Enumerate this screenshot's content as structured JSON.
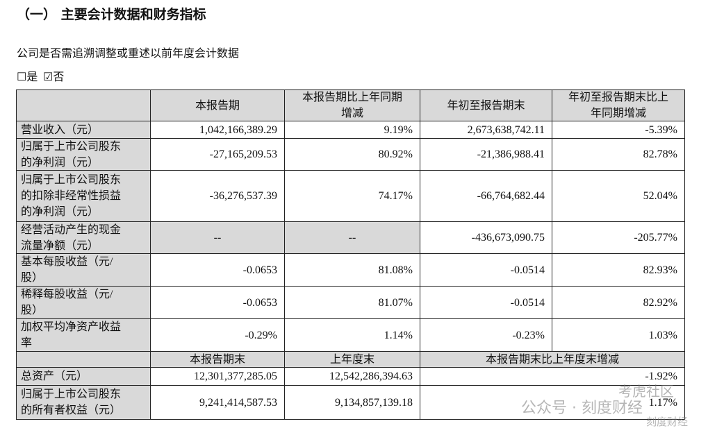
{
  "header": {
    "title": "（一） 主要会计数据和财务指标"
  },
  "question": "公司是否需追溯调整或重述以前年度会计数据",
  "options": [
    "☐是",
    "☑否"
  ],
  "table": {
    "columns": [
      [
        "本报告期"
      ],
      [
        "本报告期比上年同期",
        "增减"
      ],
      [
        "年初至报告期末"
      ],
      [
        "年初至报告期末比上",
        "年同期增减"
      ]
    ],
    "rows": [
      {
        "label": [
          "营业收入（元）"
        ],
        "cells": [
          "1,042,166,389.29",
          "9.19%",
          "2,673,638,742.11",
          "-5.39%"
        ]
      },
      {
        "label": [
          "归属于上市公司股东",
          "的净利润（元）"
        ],
        "cells": [
          "-27,165,209.53",
          "80.92%",
          "-21,386,988.41",
          "82.78%"
        ]
      },
      {
        "label": [
          "归属于上市公司股东",
          "的扣除非经常性损益",
          "的净利润（元）"
        ],
        "cells": [
          "-36,276,537.39",
          "74.17%",
          "-66,764,682.44",
          "52.04%"
        ]
      },
      {
        "label": [
          "经营活动产生的现金",
          "流量净额（元）"
        ],
        "cells": [
          "--",
          "--",
          "-436,673,090.75",
          "-205.77%"
        ]
      },
      {
        "label": [
          "基本每股收益（元/",
          "股）"
        ],
        "cells": [
          "-0.0653",
          "81.08%",
          "-0.0514",
          "82.93%"
        ]
      },
      {
        "label": [
          "稀释每股收益（元/",
          "股）"
        ],
        "cells": [
          "-0.0653",
          "81.07%",
          "-0.0514",
          "82.92%"
        ]
      },
      {
        "label": [
          "加权平均净资产收益",
          "率"
        ],
        "cells": [
          "-0.29%",
          "1.14%",
          "-0.23%",
          "1.03%"
        ]
      }
    ],
    "balance_columns": [
      "本报告期末",
      "上年度末",
      "本报告期末比上年度末增减"
    ],
    "balance_rows": [
      {
        "label": [
          "总资产（元）"
        ],
        "cells": [
          "12,301,377,285.05",
          "12,542,286,394.63",
          "-1.92%"
        ]
      },
      {
        "label": [
          "归属于上市公司股东",
          "的所有者权益（元）"
        ],
        "cells": [
          "9,241,414,587.53",
          "9,134,857,139.18",
          "1.17%"
        ]
      }
    ]
  },
  "watermark": [
    "考虎社区",
    "公众号 · 刻度财经",
    "刻度财经"
  ]
}
